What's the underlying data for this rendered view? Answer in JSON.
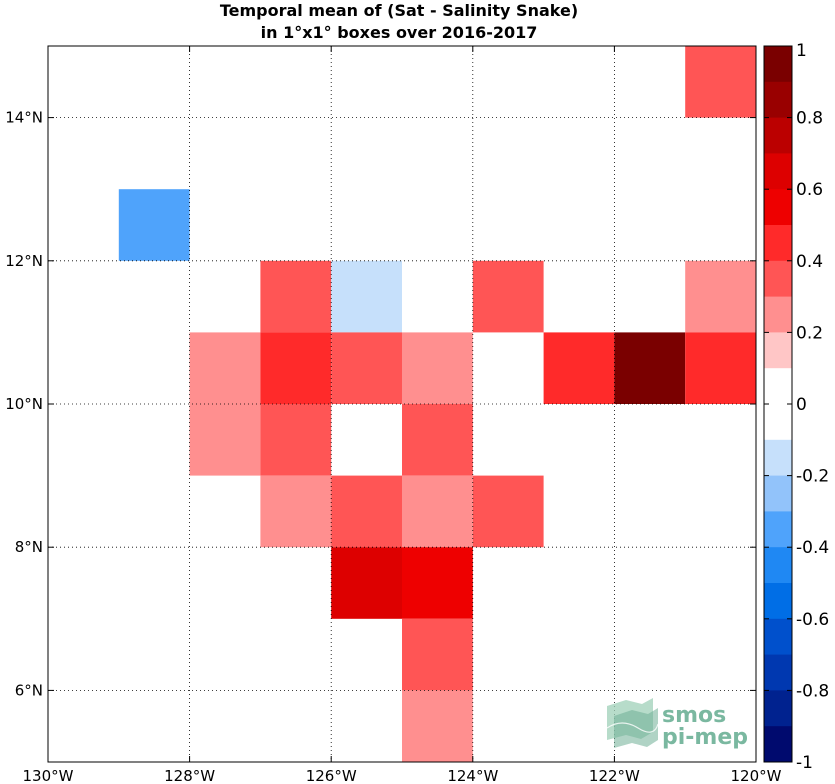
{
  "chart_data": {
    "type": "heatmap",
    "title": [
      "Temporal mean of (Sat - Salinity Snake)",
      "in 1°x1° boxes over 2016-2017"
    ],
    "xlabel": "",
    "ylabel": "",
    "xlim": [
      -130,
      -120
    ],
    "ylim": [
      5,
      15
    ],
    "grid": true,
    "x_ticks": [
      {
        "value": -130,
        "label": "130°W"
      },
      {
        "value": -128,
        "label": "128°W"
      },
      {
        "value": -126,
        "label": "126°W"
      },
      {
        "value": -124,
        "label": "124°W"
      },
      {
        "value": -122,
        "label": "122°W"
      },
      {
        "value": -120,
        "label": "120°W"
      }
    ],
    "y_ticks": [
      {
        "value": 6,
        "label": "6°N"
      },
      {
        "value": 8,
        "label": "8°N"
      },
      {
        "value": 10,
        "label": "10°N"
      },
      {
        "value": 12,
        "label": "12°N"
      },
      {
        "value": 14,
        "label": "14°N"
      }
    ],
    "cells": [
      {
        "lon": -121,
        "lat": 14,
        "value": 0.3
      },
      {
        "lon": -129,
        "lat": 12,
        "value": -0.4
      },
      {
        "lon": -127,
        "lat": 11,
        "value": 0.3
      },
      {
        "lon": -126,
        "lat": 11,
        "value": -0.2
      },
      {
        "lon": -124,
        "lat": 11,
        "value": 0.3
      },
      {
        "lon": -121,
        "lat": 11,
        "value": 0.2
      },
      {
        "lon": -129,
        "lat": 10,
        "value": -0.1
      },
      {
        "lon": -128,
        "lat": 10,
        "value": 0.2
      },
      {
        "lon": -127,
        "lat": 10,
        "value": 0.4
      },
      {
        "lon": -126,
        "lat": 10,
        "value": 0.3
      },
      {
        "lon": -125,
        "lat": 10,
        "value": 0.2
      },
      {
        "lon": -123,
        "lat": 10,
        "value": 0.4
      },
      {
        "lon": -122,
        "lat": 10,
        "value": 0.9
      },
      {
        "lon": -121,
        "lat": 10,
        "value": 0.4
      },
      {
        "lon": -129,
        "lat": 9,
        "value": -0.1
      },
      {
        "lon": -128,
        "lat": 9,
        "value": 0.2
      },
      {
        "lon": -127,
        "lat": 9,
        "value": 0.3
      },
      {
        "lon": -125,
        "lat": 9,
        "value": 0.3
      },
      {
        "lon": -127,
        "lat": 8,
        "value": 0.2
      },
      {
        "lon": -126,
        "lat": 8,
        "value": 0.3
      },
      {
        "lon": -125,
        "lat": 8,
        "value": 0.2
      },
      {
        "lon": -124,
        "lat": 8,
        "value": 0.3
      },
      {
        "lon": -126,
        "lat": 7,
        "value": 0.6
      },
      {
        "lon": -125,
        "lat": 7,
        "value": 0.5
      },
      {
        "lon": -125,
        "lat": 6,
        "value": 0.3
      },
      {
        "lon": -125,
        "lat": 5,
        "value": 0.2
      }
    ],
    "colorbar": {
      "range": [
        -1,
        1
      ],
      "tick_labels": [
        "1",
        "0.8",
        "0.6",
        "0.4",
        "0.2",
        "0",
        "-0.2",
        "-0.4",
        "-0.6",
        "-0.8",
        "-1"
      ],
      "tick_values": [
        1,
        0.8,
        0.6,
        0.4,
        0.2,
        0,
        -0.2,
        -0.4,
        -0.6,
        -0.8,
        -1
      ],
      "levels": [
        {
          "from": 0.9,
          "to": 1.0,
          "color": "#7a0000"
        },
        {
          "from": 0.8,
          "to": 0.9,
          "color": "#990000"
        },
        {
          "from": 0.7,
          "to": 0.8,
          "color": "#bb0000"
        },
        {
          "from": 0.6,
          "to": 0.7,
          "color": "#dd0000"
        },
        {
          "from": 0.5,
          "to": 0.6,
          "color": "#ee0000"
        },
        {
          "from": 0.4,
          "to": 0.5,
          "color": "#ff2a2a"
        },
        {
          "from": 0.3,
          "to": 0.4,
          "color": "#ff5555"
        },
        {
          "from": 0.2,
          "to": 0.3,
          "color": "#ff8f8f"
        },
        {
          "from": 0.1,
          "to": 0.2,
          "color": "#ffc6c6"
        },
        {
          "from": 0.0,
          "to": 0.1,
          "color": "#ffffff"
        },
        {
          "from": -0.1,
          "to": 0.0,
          "color": "#ffffff"
        },
        {
          "from": -0.2,
          "to": -0.1,
          "color": "#c6e0fb"
        },
        {
          "from": -0.3,
          "to": -0.2,
          "color": "#92c3fa"
        },
        {
          "from": -0.4,
          "to": -0.3,
          "color": "#4fa3fb"
        },
        {
          "from": -0.5,
          "to": -0.4,
          "color": "#1f88f3"
        },
        {
          "from": -0.6,
          "to": -0.5,
          "color": "#006ee6"
        },
        {
          "from": -0.7,
          "to": -0.6,
          "color": "#0050cc"
        },
        {
          "from": -0.8,
          "to": -0.7,
          "color": "#0038b0"
        },
        {
          "from": -0.9,
          "to": -0.8,
          "color": "#00228f"
        },
        {
          "from": -1.0,
          "to": -0.9,
          "color": "#000a6e"
        }
      ]
    }
  },
  "logo": {
    "line1": "smos",
    "line2": "pi-mep",
    "color": "#7ab8a0"
  }
}
